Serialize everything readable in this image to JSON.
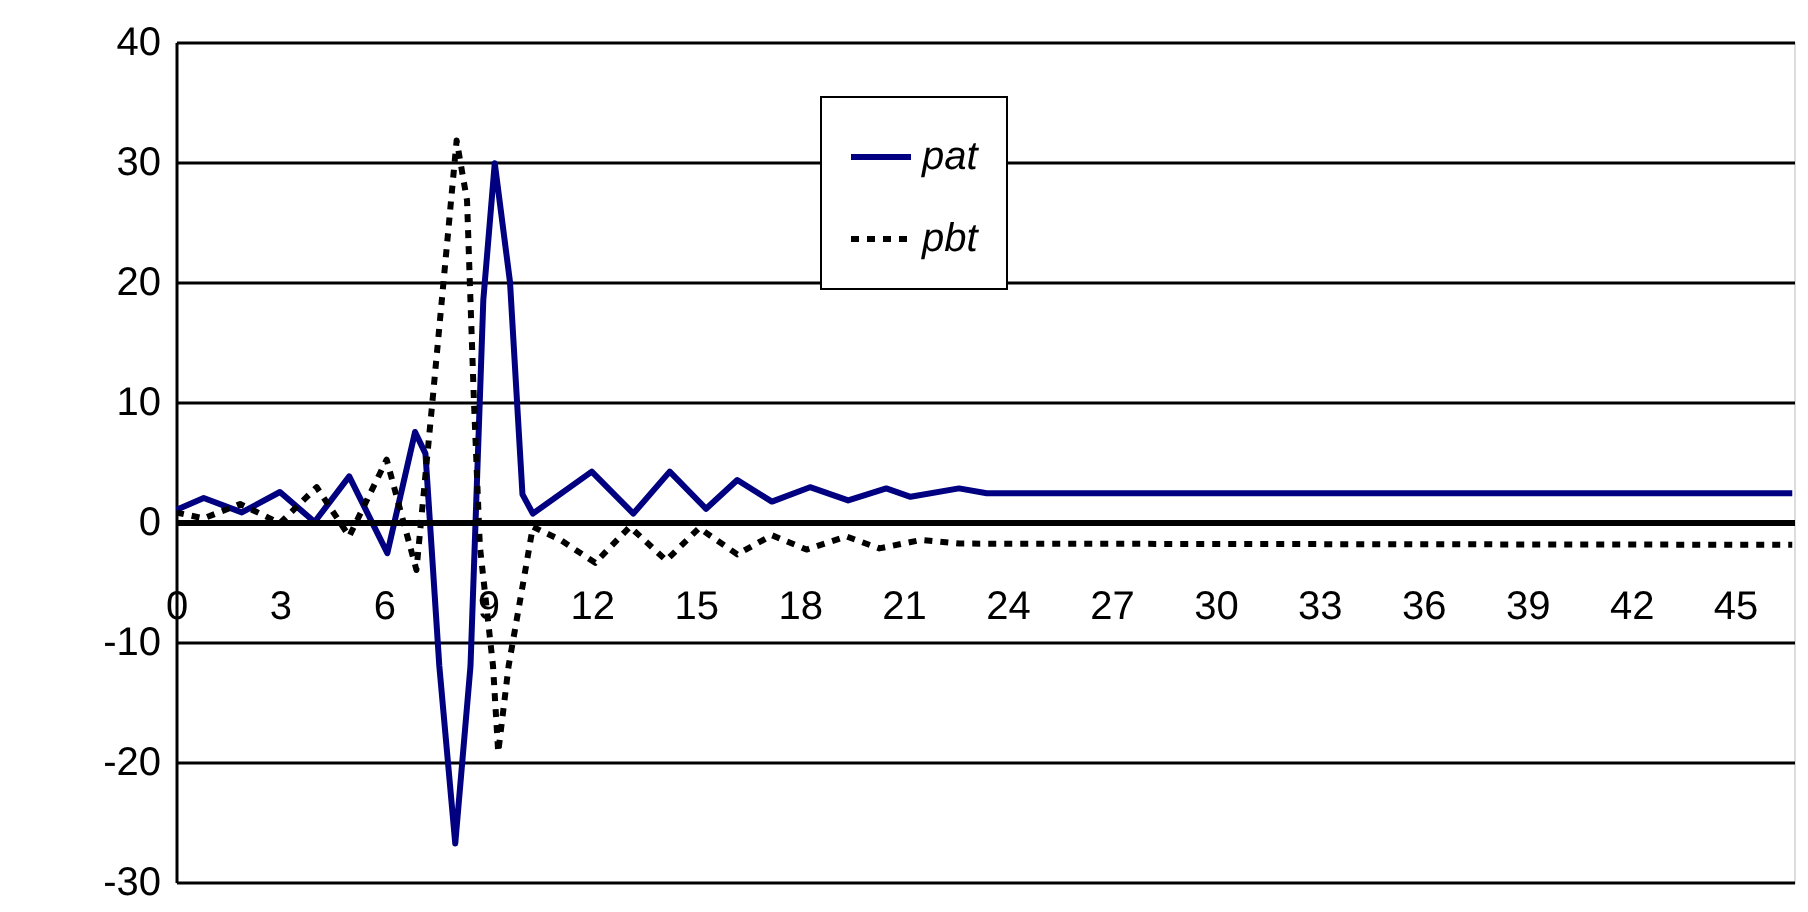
{
  "chart_data": {
    "type": "line",
    "xlim": [
      0,
      46.7
    ],
    "xticks": [
      0,
      3,
      6,
      9,
      12,
      15,
      18,
      21,
      24,
      27,
      30,
      33,
      36,
      39,
      42,
      45
    ],
    "ylim": [
      -30,
      40
    ],
    "yticks": [
      -30,
      -20,
      -10,
      0,
      10,
      20,
      30,
      40
    ],
    "grid": "y",
    "legend": "top",
    "marker": "none",
    "series": [
      {
        "name": "pat",
        "color": "#000080",
        "line_style": "solid",
        "x": [
          0,
          0.8,
          1.9,
          3,
          4,
          5,
          6.1,
          6.9,
          7.2,
          7.6,
          8.06,
          8.5,
          8.87,
          9.2,
          9.64,
          10,
          10.3,
          12,
          13.2,
          14.25,
          15.3,
          16.2,
          17.2,
          18.3,
          19.4,
          20.5,
          21.2,
          22.6,
          23.4,
          46.65
        ],
        "values": [
          1,
          2,
          0.8,
          2.5,
          0,
          3.8,
          -2.6,
          7.5,
          5.7,
          -12,
          -26.8,
          -12,
          18.5,
          29.9,
          20,
          2.3,
          0.7,
          4.2,
          0.7,
          4.2,
          1.1,
          3.5,
          1.7,
          2.9,
          1.8,
          2.8,
          2.1,
          2.8,
          2.4,
          2.4
        ]
      },
      {
        "name": "pbt",
        "color": "#000000",
        "line_style": "dotted",
        "x": [
          0,
          0.8,
          1.85,
          3,
          4.06,
          5,
          6.08,
          6.94,
          7.4,
          8.1,
          8.4,
          8.6,
          8.77,
          9.15,
          9.3,
          9.6,
          10,
          10.3,
          11.1,
          12.1,
          13.1,
          14.15,
          15.1,
          16.2,
          17.2,
          18.2,
          19.35,
          20.3,
          21.5,
          22.6,
          46.65
        ],
        "values": [
          0.8,
          0.3,
          1.5,
          -0.1,
          2.9,
          -1.2,
          5.2,
          -4,
          10,
          31.8,
          26.8,
          10,
          -2,
          -12,
          -19.2,
          -12,
          -5.4,
          -0.4,
          -1.5,
          -3.4,
          -0.4,
          -3.2,
          -0.5,
          -2.7,
          -1.1,
          -2.3,
          -1.2,
          -2.2,
          -1.5,
          -1.8,
          -1.9
        ]
      }
    ]
  }
}
